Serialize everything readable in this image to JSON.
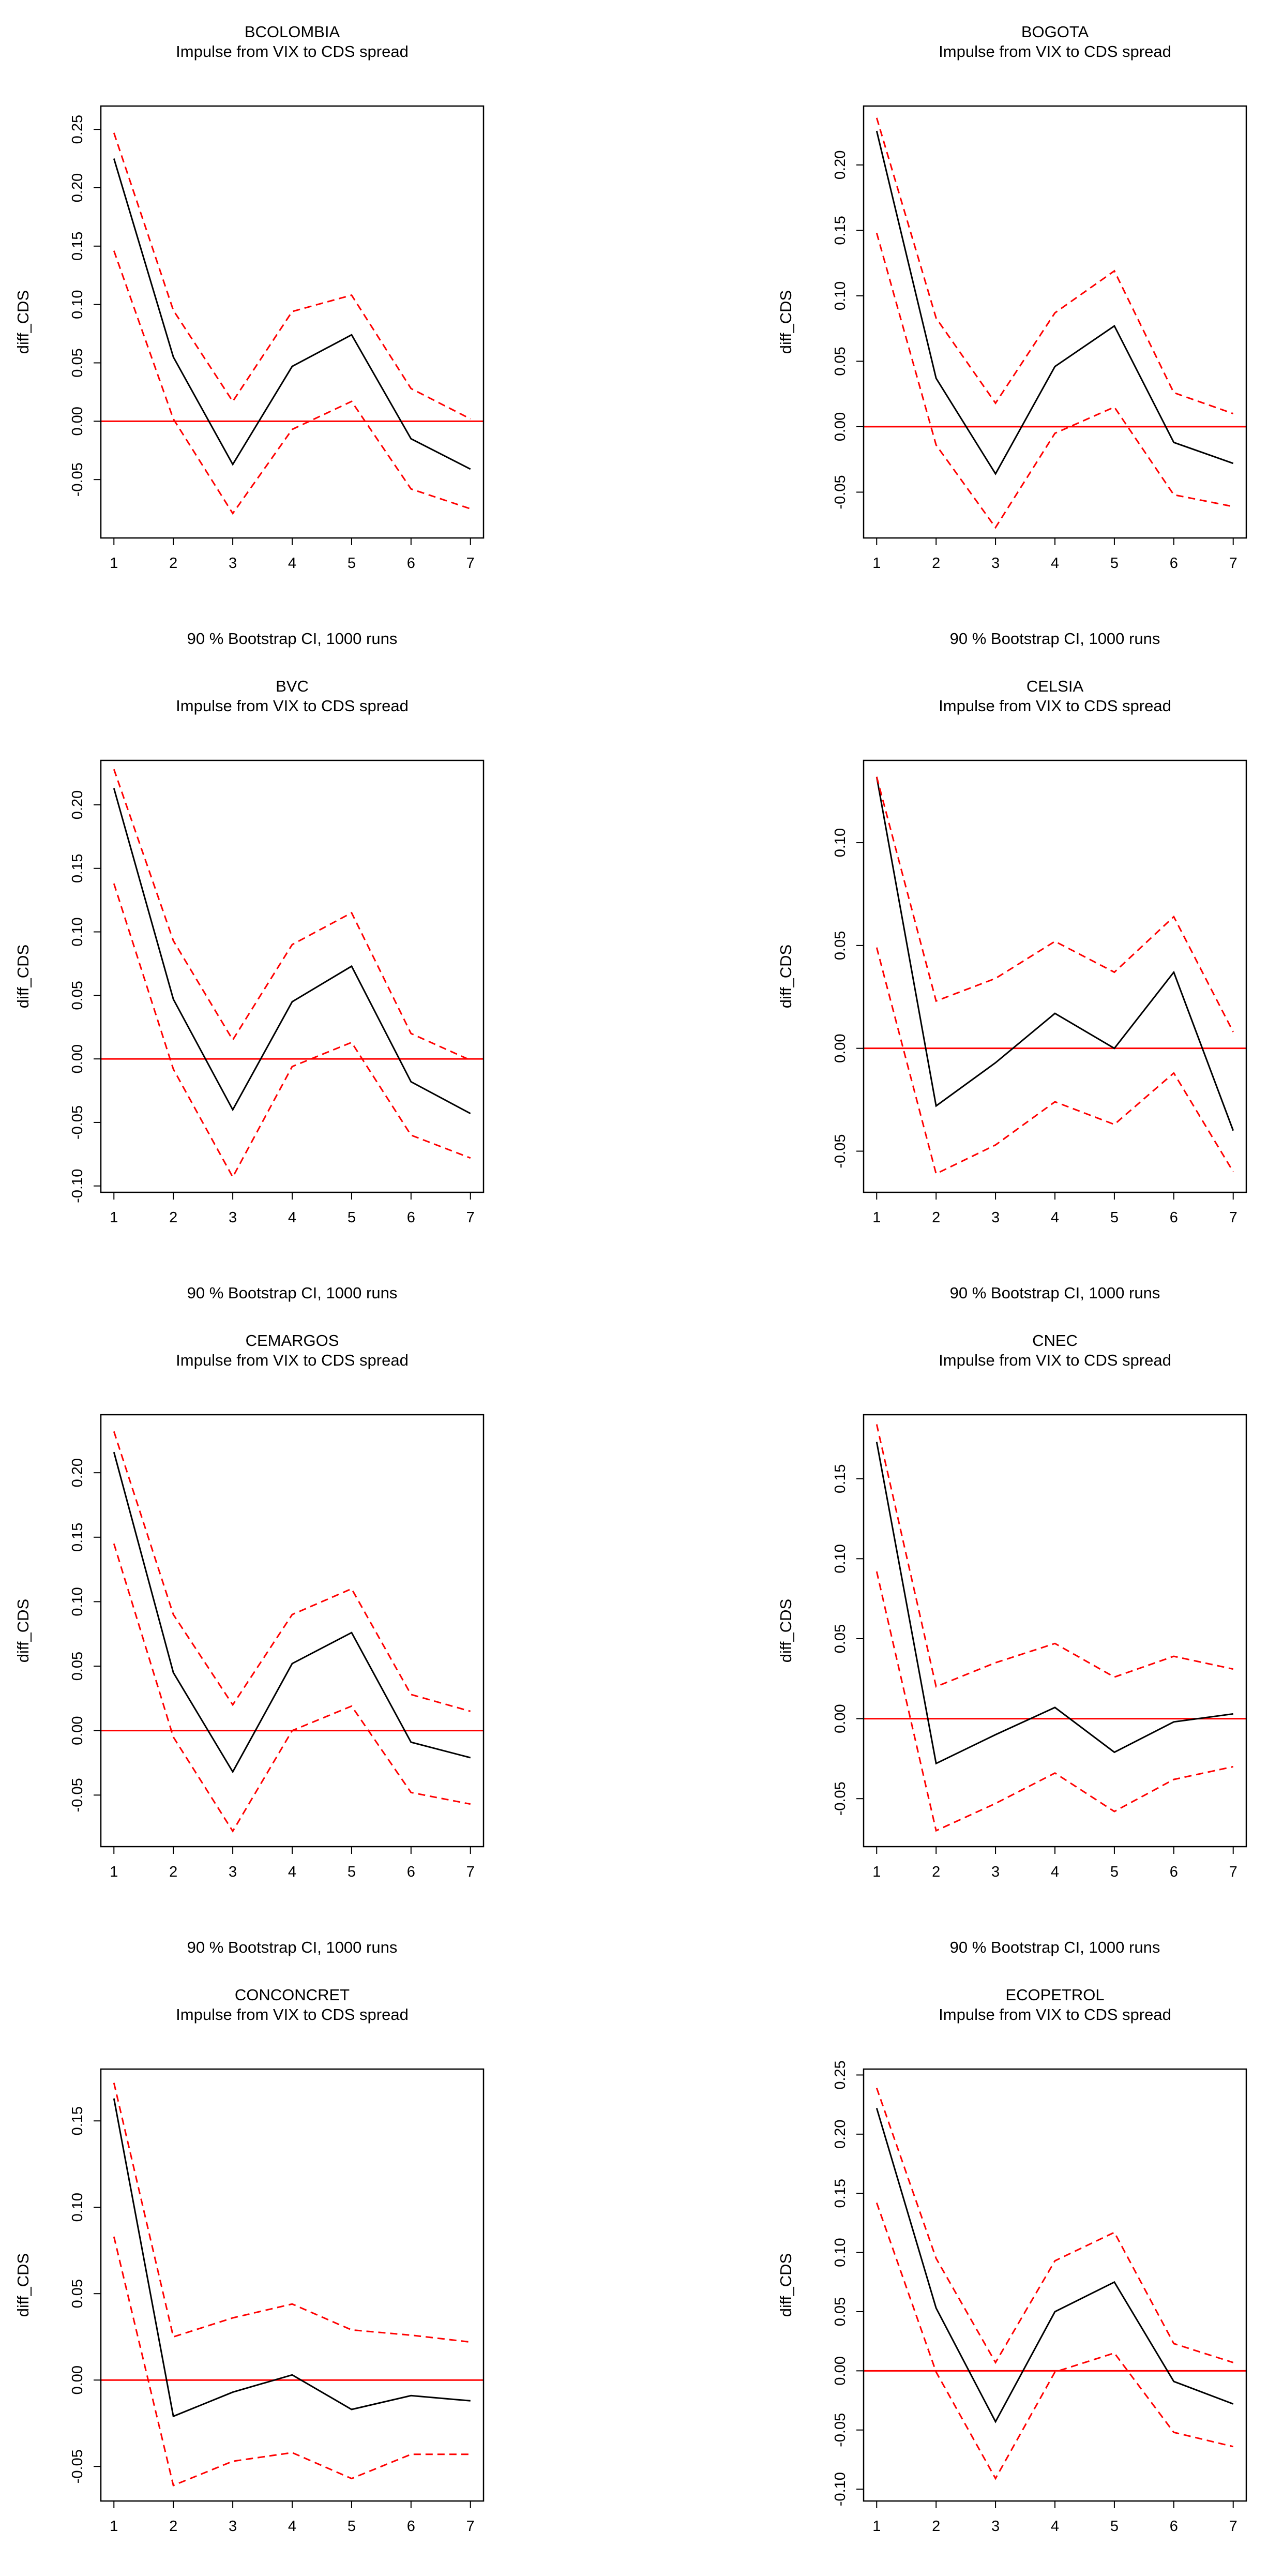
{
  "colors": {
    "background": "#ffffff",
    "irf_line": "#000000",
    "ci_band": "#ff0000",
    "zero_line": "#ff0000",
    "axes": "#000000"
  },
  "chart_data": [
    {
      "type": "line",
      "title": "BCOLOMBIA",
      "subtitle": "Impulse from VIX to CDS spread",
      "ylabel": "diff_CDS",
      "xlabel": "90 % Bootstrap CI,  1000 runs",
      "x": [
        1,
        2,
        3,
        4,
        5,
        6,
        7
      ],
      "xticks": [
        "1",
        "2",
        "3",
        "4",
        "5",
        "6",
        "7"
      ],
      "ylim": [
        -0.1,
        0.27
      ],
      "yticks": [
        -0.05,
        0.0,
        0.05,
        0.1,
        0.15,
        0.2,
        0.25
      ],
      "ytick_labels": [
        "-0.05",
        "0.00",
        "0.05",
        "0.10",
        "0.15",
        "0.20",
        "0.25"
      ],
      "series": [
        {
          "name": "irf",
          "style": "solid",
          "values": [
            0.225,
            0.055,
            -0.037,
            0.047,
            0.074,
            -0.015,
            -0.041
          ]
        },
        {
          "name": "upper",
          "style": "dashed",
          "values": [
            0.247,
            0.095,
            0.017,
            0.094,
            0.108,
            0.028,
            0.002
          ]
        },
        {
          "name": "lower",
          "style": "dashed",
          "values": [
            0.146,
            0.002,
            -0.079,
            -0.007,
            0.017,
            -0.058,
            -0.075
          ]
        }
      ],
      "hline": 0
    },
    {
      "type": "line",
      "title": "BOGOTA",
      "subtitle": "Impulse from VIX to CDS spread",
      "ylabel": "diff_CDS",
      "xlabel": "90 % Bootstrap CI,  1000 runs",
      "x": [
        1,
        2,
        3,
        4,
        5,
        6,
        7
      ],
      "xticks": [
        "1",
        "2",
        "3",
        "4",
        "5",
        "6",
        "7"
      ],
      "ylim": [
        -0.085,
        0.245
      ],
      "yticks": [
        -0.05,
        0.0,
        0.05,
        0.1,
        0.15,
        0.2
      ],
      "ytick_labels": [
        "-0.05",
        "0.00",
        "0.05",
        "0.10",
        "0.15",
        "0.20"
      ],
      "series": [
        {
          "name": "irf",
          "style": "solid",
          "values": [
            0.226,
            0.037,
            -0.036,
            0.046,
            0.077,
            -0.012,
            -0.028
          ]
        },
        {
          "name": "upper",
          "style": "dashed",
          "values": [
            0.236,
            0.083,
            0.018,
            0.087,
            0.119,
            0.026,
            0.01
          ]
        },
        {
          "name": "lower",
          "style": "dashed",
          "values": [
            0.148,
            -0.014,
            -0.077,
            -0.005,
            0.015,
            -0.052,
            -0.061
          ]
        }
      ],
      "hline": 0
    },
    {
      "type": "line",
      "title": "BVC",
      "subtitle": "Impulse from VIX to CDS spread",
      "ylabel": "diff_CDS",
      "xlabel": "90 % Bootstrap CI,  1000 runs",
      "x": [
        1,
        2,
        3,
        4,
        5,
        6,
        7
      ],
      "xticks": [
        "1",
        "2",
        "3",
        "4",
        "5",
        "6",
        "7"
      ],
      "ylim": [
        -0.105,
        0.235
      ],
      "yticks": [
        -0.1,
        -0.05,
        0.0,
        0.05,
        0.1,
        0.15,
        0.2
      ],
      "ytick_labels": [
        "-0.10",
        "-0.05",
        "0.00",
        "0.05",
        "0.10",
        "0.15",
        "0.20"
      ],
      "series": [
        {
          "name": "irf",
          "style": "solid",
          "values": [
            0.213,
            0.047,
            -0.04,
            0.045,
            0.073,
            -0.018,
            -0.043
          ]
        },
        {
          "name": "upper",
          "style": "dashed",
          "values": [
            0.228,
            0.093,
            0.015,
            0.09,
            0.115,
            0.02,
            -0.001
          ]
        },
        {
          "name": "lower",
          "style": "dashed",
          "values": [
            0.138,
            -0.008,
            -0.093,
            -0.006,
            0.013,
            -0.06,
            -0.078
          ]
        }
      ],
      "hline": 0
    },
    {
      "type": "line",
      "title": "CELSIA",
      "subtitle": "Impulse from VIX to CDS spread",
      "ylabel": "diff_CDS",
      "xlabel": "90 % Bootstrap CI,  1000 runs",
      "x": [
        1,
        2,
        3,
        4,
        5,
        6,
        7
      ],
      "xticks": [
        "1",
        "2",
        "3",
        "4",
        "5",
        "6",
        "7"
      ],
      "ylim": [
        -0.07,
        0.14
      ],
      "yticks": [
        -0.05,
        0.0,
        0.05,
        0.1
      ],
      "ytick_labels": [
        "-0.05",
        "0.00",
        "0.05",
        "0.10"
      ],
      "series": [
        {
          "name": "irf",
          "style": "solid",
          "values": [
            0.132,
            -0.028,
            -0.007,
            0.017,
            0.0,
            0.037,
            -0.04
          ]
        },
        {
          "name": "upper",
          "style": "dashed",
          "values": [
            0.132,
            0.023,
            0.034,
            0.052,
            0.037,
            0.064,
            0.008
          ]
        },
        {
          "name": "lower",
          "style": "dashed",
          "values": [
            0.049,
            -0.061,
            -0.047,
            -0.026,
            -0.037,
            -0.012,
            -0.06
          ]
        }
      ],
      "hline": 0
    },
    {
      "type": "line",
      "title": "CEMARGOS",
      "subtitle": "Impulse from VIX to CDS spread",
      "ylabel": "diff_CDS",
      "xlabel": "90 % Bootstrap CI,  1000 runs",
      "x": [
        1,
        2,
        3,
        4,
        5,
        6,
        7
      ],
      "xticks": [
        "1",
        "2",
        "3",
        "4",
        "5",
        "6",
        "7"
      ],
      "ylim": [
        -0.09,
        0.245
      ],
      "yticks": [
        -0.05,
        0.0,
        0.05,
        0.1,
        0.15,
        0.2
      ],
      "ytick_labels": [
        "-0.05",
        "0.00",
        "0.05",
        "0.10",
        "0.15",
        "0.20"
      ],
      "series": [
        {
          "name": "irf",
          "style": "solid",
          "values": [
            0.216,
            0.045,
            -0.032,
            0.052,
            0.076,
            -0.009,
            -0.021
          ]
        },
        {
          "name": "upper",
          "style": "dashed",
          "values": [
            0.232,
            0.09,
            0.02,
            0.09,
            0.11,
            0.028,
            0.015
          ]
        },
        {
          "name": "lower",
          "style": "dashed",
          "values": [
            0.145,
            -0.005,
            -0.078,
            0.0,
            0.019,
            -0.048,
            -0.057
          ]
        }
      ],
      "hline": 0
    },
    {
      "type": "line",
      "title": "CNEC",
      "subtitle": "Impulse from VIX to CDS spread",
      "ylabel": "diff_CDS",
      "xlabel": "90 % Bootstrap CI,  1000 runs",
      "x": [
        1,
        2,
        3,
        4,
        5,
        6,
        7
      ],
      "xticks": [
        "1",
        "2",
        "3",
        "4",
        "5",
        "6",
        "7"
      ],
      "ylim": [
        -0.08,
        0.19
      ],
      "yticks": [
        -0.05,
        0.0,
        0.05,
        0.1,
        0.15
      ],
      "ytick_labels": [
        "-0.05",
        "0.00",
        "0.05",
        "0.10",
        "0.15"
      ],
      "series": [
        {
          "name": "irf",
          "style": "solid",
          "values": [
            0.173,
            -0.028,
            -0.01,
            0.007,
            -0.021,
            -0.002,
            0.003
          ]
        },
        {
          "name": "upper",
          "style": "dashed",
          "values": [
            0.184,
            0.02,
            0.035,
            0.047,
            0.026,
            0.039,
            0.031
          ]
        },
        {
          "name": "lower",
          "style": "dashed",
          "values": [
            0.092,
            -0.07,
            -0.053,
            -0.034,
            -0.058,
            -0.038,
            -0.03
          ]
        }
      ],
      "hline": 0
    },
    {
      "type": "line",
      "title": "CONCONCRET",
      "subtitle": "Impulse from VIX to CDS spread",
      "ylabel": "diff_CDS",
      "xlabel": "90 % Bootstrap CI,  1000 runs",
      "x": [
        1,
        2,
        3,
        4,
        5,
        6,
        7
      ],
      "xticks": [
        "1",
        "2",
        "3",
        "4",
        "5",
        "6",
        "7"
      ],
      "ylim": [
        -0.07,
        0.18
      ],
      "yticks": [
        -0.05,
        0.0,
        0.05,
        0.1,
        0.15
      ],
      "ytick_labels": [
        "-0.05",
        "0.00",
        "0.05",
        "0.10",
        "0.15"
      ],
      "series": [
        {
          "name": "irf",
          "style": "solid",
          "values": [
            0.163,
            -0.021,
            -0.007,
            0.003,
            -0.017,
            -0.009,
            -0.012
          ]
        },
        {
          "name": "upper",
          "style": "dashed",
          "values": [
            0.172,
            0.025,
            0.036,
            0.044,
            0.029,
            0.026,
            0.022
          ]
        },
        {
          "name": "lower",
          "style": "dashed",
          "values": [
            0.083,
            -0.061,
            -0.047,
            -0.042,
            -0.057,
            -0.043,
            -0.043
          ]
        }
      ],
      "hline": 0
    },
    {
      "type": "line",
      "title": "ECOPETROL",
      "subtitle": "Impulse from VIX to CDS spread",
      "ylabel": "diff_CDS",
      "xlabel": "90 % Bootstrap CI,  1000 runs",
      "x": [
        1,
        2,
        3,
        4,
        5,
        6,
        7
      ],
      "xticks": [
        "1",
        "2",
        "3",
        "4",
        "5",
        "6",
        "7"
      ],
      "ylim": [
        -0.11,
        0.255
      ],
      "yticks": [
        -0.1,
        -0.05,
        0.0,
        0.05,
        0.1,
        0.15,
        0.2,
        0.25
      ],
      "ytick_labels": [
        "-0.10",
        "-0.05",
        "0.00",
        "0.05",
        "0.10",
        "0.15",
        "0.20",
        "0.25"
      ],
      "series": [
        {
          "name": "irf",
          "style": "solid",
          "values": [
            0.222,
            0.053,
            -0.043,
            0.05,
            0.075,
            -0.009,
            -0.028
          ]
        },
        {
          "name": "upper",
          "style": "dashed",
          "values": [
            0.239,
            0.095,
            0.007,
            0.093,
            0.117,
            0.023,
            0.007
          ]
        },
        {
          "name": "lower",
          "style": "dashed",
          "values": [
            0.142,
            -0.001,
            -0.091,
            -0.001,
            0.015,
            -0.052,
            -0.064
          ]
        }
      ],
      "hline": 0
    }
  ]
}
